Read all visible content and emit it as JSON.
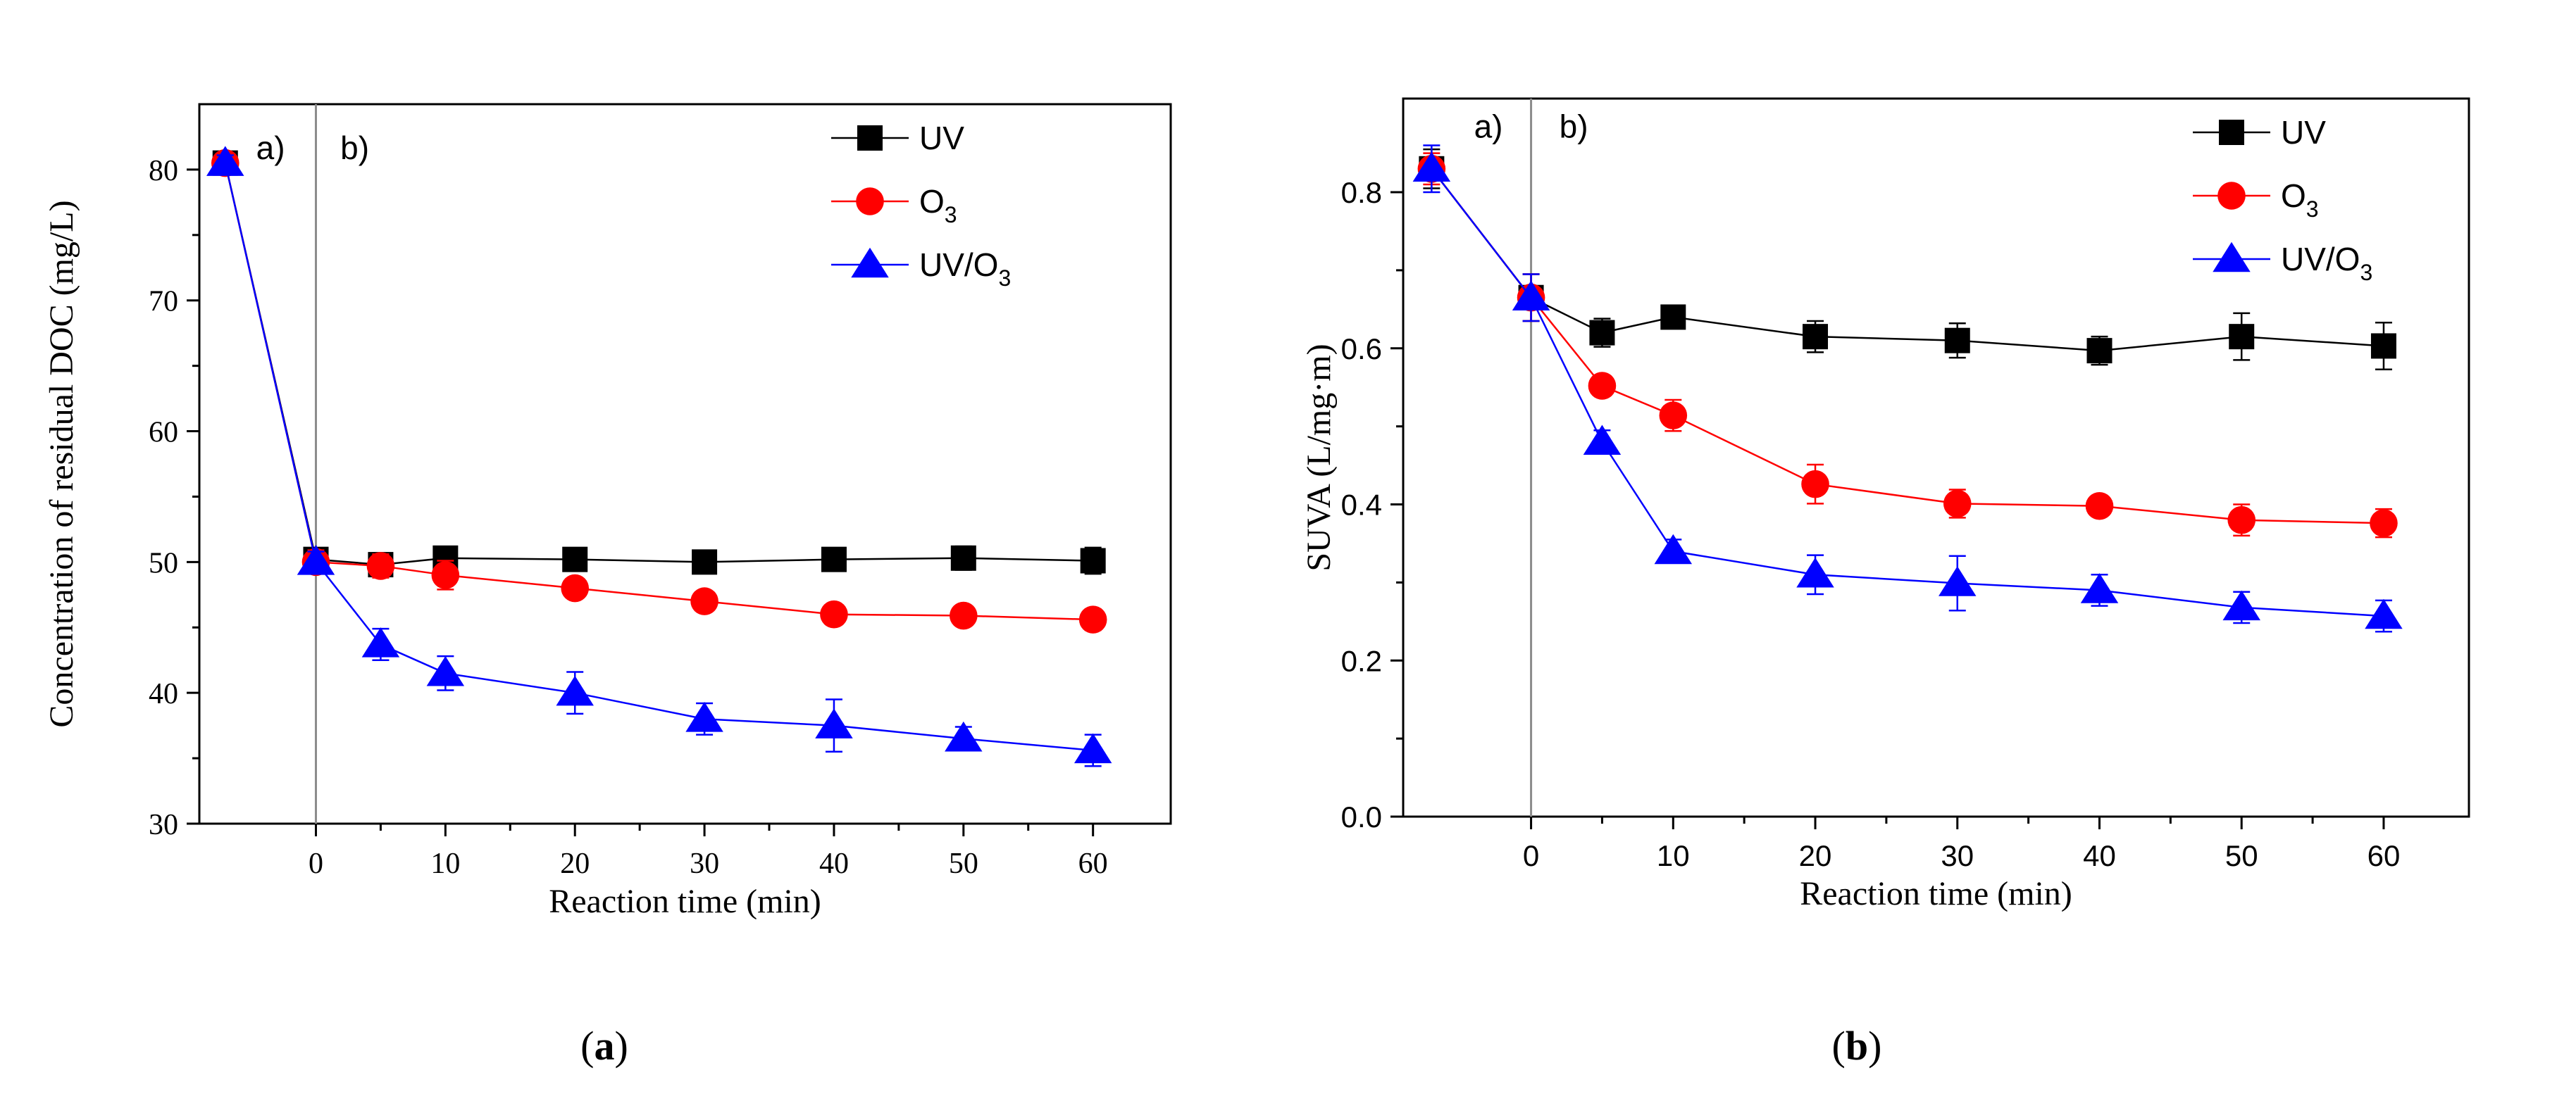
{
  "chart_data": [
    {
      "id": "a",
      "type": "line",
      "caption": {
        "open": "(",
        "letter": "a",
        "close": ")"
      },
      "xlabel": "Reaction time (min)",
      "ylabel": "Concentration of residual DOC (mg/L)",
      "xlim": [
        -9,
        66
      ],
      "ylim": [
        30,
        85
      ],
      "xticks": [
        0,
        10,
        20,
        30,
        40,
        50,
        60
      ],
      "yticks": [
        30,
        40,
        50,
        60,
        70,
        80
      ],
      "ytick_labels": [
        "30",
        "40",
        "50",
        "60",
        "70",
        "80"
      ],
      "divider_x": 0,
      "annotations": [
        {
          "text": "a)",
          "x": -3.5,
          "y": 80.8
        },
        {
          "text": "b)",
          "x": 3.0,
          "y": 80.8
        }
      ],
      "series": [
        {
          "name": "UV",
          "subscript": "",
          "color": "#000000",
          "marker": "square",
          "x": [
            -7,
            0,
            5,
            10,
            20,
            30,
            40,
            50,
            60
          ],
          "y": [
            80.5,
            50.2,
            49.8,
            50.3,
            50.2,
            50.0,
            50.2,
            50.3,
            50.1
          ],
          "err": [
            0.6,
            0.7,
            0.8,
            0.6,
            0.5,
            0.6,
            0.8,
            0.9,
            1.0
          ]
        },
        {
          "name": "O",
          "subscript": "3",
          "color": "#ff0000",
          "marker": "circle",
          "x": [
            -7,
            0,
            5,
            10,
            20,
            30,
            40,
            50,
            60
          ],
          "y": [
            80.5,
            50.0,
            49.7,
            49.0,
            48.0,
            47.0,
            46.0,
            45.9,
            45.6
          ],
          "err": [
            0.6,
            0.9,
            0.9,
            1.1,
            0.6,
            0.7,
            0.6,
            0.6,
            0.8
          ]
        },
        {
          "name": "UV/O",
          "subscript": "3",
          "color": "#0000ff",
          "marker": "triangle",
          "x": [
            -7,
            0,
            5,
            10,
            20,
            30,
            40,
            50,
            60
          ],
          "y": [
            80.5,
            50.0,
            43.7,
            41.5,
            40.0,
            38.0,
            37.5,
            36.5,
            35.6
          ],
          "err": [
            0.6,
            0.8,
            1.2,
            1.3,
            1.6,
            1.2,
            2.0,
            0.9,
            1.2
          ]
        }
      ]
    },
    {
      "id": "b",
      "type": "line",
      "caption": {
        "open": "(",
        "letter": "b",
        "close": ")"
      },
      "xlabel": "Reaction time (min)",
      "ylabel": "SUVA (L/mg·m)",
      "xlim": [
        -9,
        66
      ],
      "ylim": [
        0,
        0.92
      ],
      "xticks": [
        0,
        10,
        20,
        30,
        40,
        50,
        60
      ],
      "yticks": [
        0,
        0.2,
        0.4,
        0.6,
        0.8
      ],
      "ytick_labels": [
        "0.0",
        "0.2",
        "0.4",
        "0.6",
        "0.8"
      ],
      "divider_x": 0,
      "annotations": [
        {
          "text": "a)",
          "x": -3.0,
          "y": 0.87
        },
        {
          "text": "b)",
          "x": 3.0,
          "y": 0.87
        }
      ],
      "series": [
        {
          "name": "UV",
          "subscript": "",
          "color": "#000000",
          "marker": "square",
          "x": [
            -7,
            0,
            5,
            10,
            20,
            30,
            40,
            50,
            60
          ],
          "y": [
            0.83,
            0.665,
            0.62,
            0.64,
            0.615,
            0.61,
            0.597,
            0.615,
            0.603
          ],
          "err": [
            0.025,
            0.03,
            0.018,
            0.01,
            0.02,
            0.022,
            0.018,
            0.03,
            0.03
          ]
        },
        {
          "name": "O",
          "subscript": "3",
          "color": "#ff0000",
          "marker": "circle",
          "x": [
            -7,
            0,
            5,
            10,
            20,
            30,
            40,
            50,
            60
          ],
          "y": [
            0.83,
            0.665,
            0.552,
            0.514,
            0.426,
            0.401,
            0.398,
            0.38,
            0.376
          ],
          "err": [
            0.02,
            0.03,
            0.012,
            0.02,
            0.025,
            0.018,
            0.012,
            0.02,
            0.018
          ]
        },
        {
          "name": "UV/O",
          "subscript": "3",
          "color": "#0000ff",
          "marker": "triangle",
          "x": [
            -7,
            0,
            5,
            10,
            20,
            30,
            40,
            50,
            60
          ],
          "y": [
            0.83,
            0.665,
            0.48,
            0.34,
            0.31,
            0.299,
            0.29,
            0.268,
            0.257
          ],
          "err": [
            0.03,
            0.03,
            0.015,
            0.015,
            0.025,
            0.035,
            0.02,
            0.02,
            0.02
          ]
        }
      ]
    }
  ]
}
